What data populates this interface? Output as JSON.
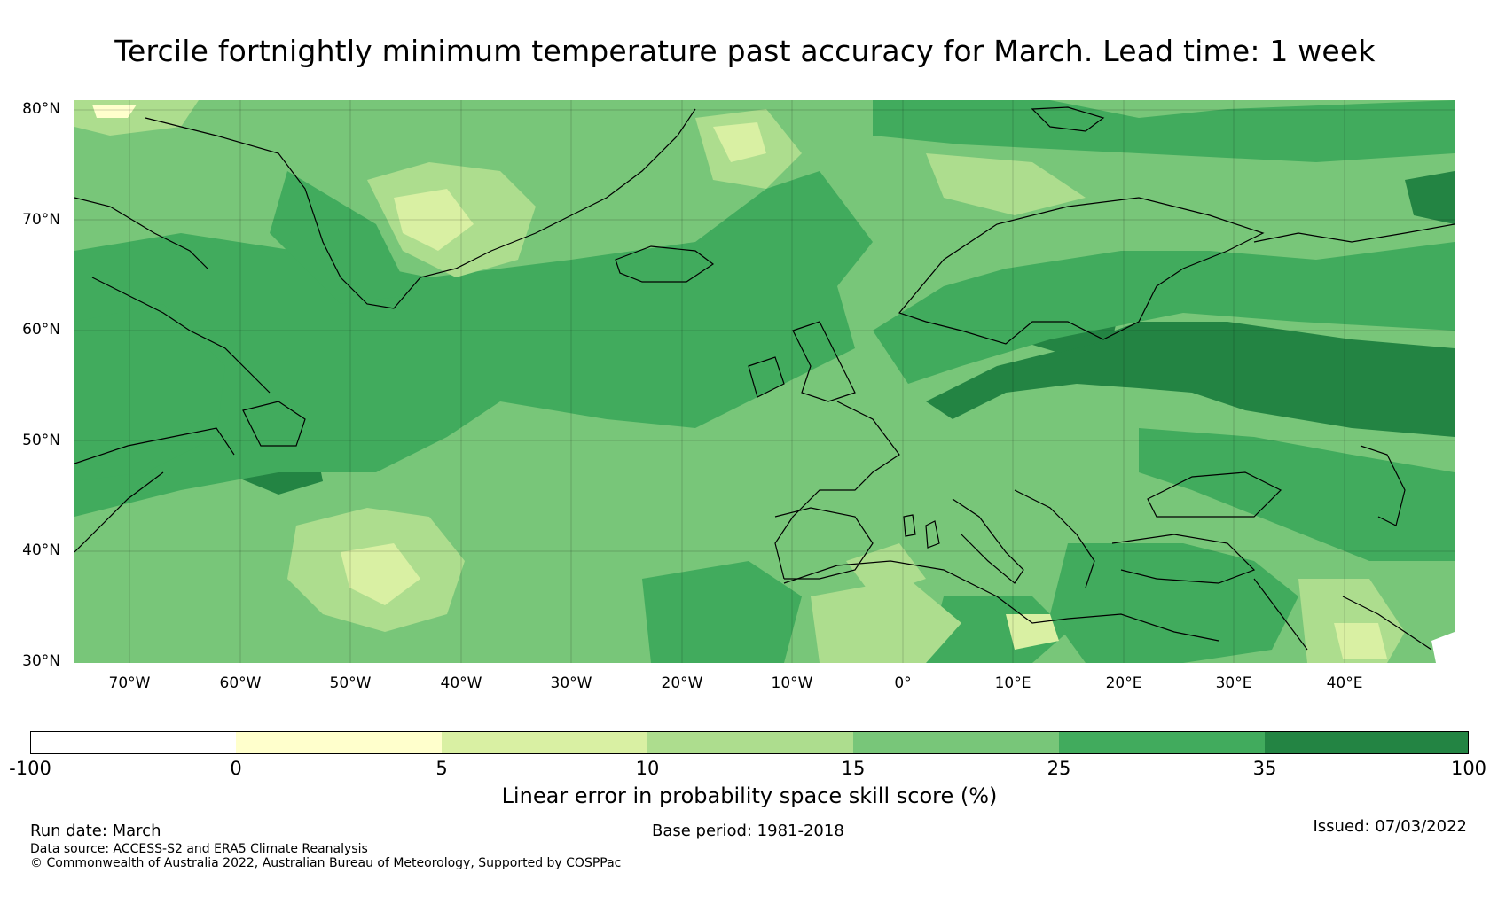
{
  "title": "Tercile fortnightly minimum temperature past accuracy for March. Lead time: 1 week",
  "map": {
    "lat_labels": [
      "80°N",
      "70°N",
      "60°N",
      "50°N",
      "40°N",
      "30°N"
    ],
    "lon_labels": [
      "70°W",
      "60°W",
      "50°W",
      "40°W",
      "30°W",
      "20°W",
      "10°W",
      "0°",
      "10°E",
      "20°E",
      "30°E",
      "40°E"
    ],
    "lat_range": [
      30,
      81
    ],
    "lon_range": [
      -75,
      50
    ]
  },
  "colorbar": {
    "ticks": [
      "-100",
      "0",
      "5",
      "10",
      "15",
      "25",
      "35",
      "100"
    ],
    "colors": [
      "#ffffff",
      "#ffffcc",
      "#d9f0a3",
      "#addd8e",
      "#78c679",
      "#41ab5d",
      "#238443"
    ],
    "label": "Linear error in probability space skill score (%)"
  },
  "footer": {
    "run_date": "Run date: March",
    "base_period": "Base period: 1981-2018",
    "issued": "Issued: 07/03/2022",
    "data_source": "Data source: ACCESS-S2 and ERA5 Climate Reanalysis",
    "copyright": "© Commonwealth of Australia 2022, Australian Bureau of Meteorology, Supported by COSPPac"
  }
}
